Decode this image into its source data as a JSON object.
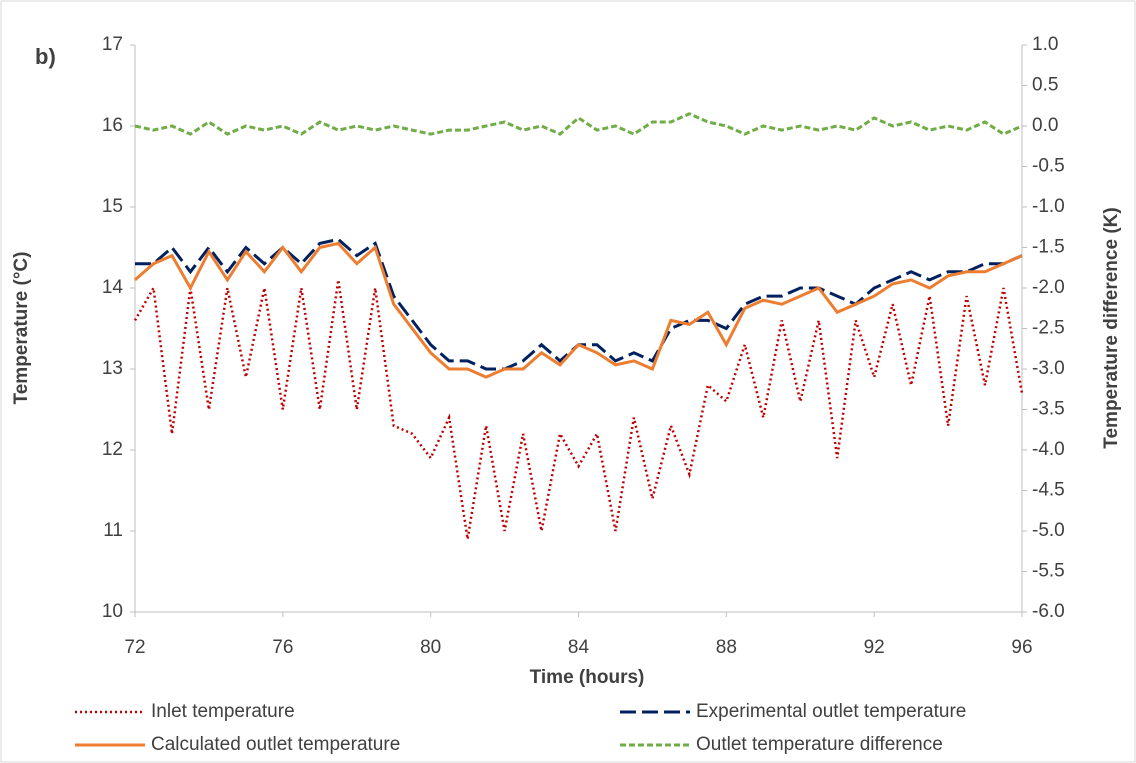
{
  "chart_data": {
    "type": "line",
    "title": "b)",
    "x_label": "Time (hours)",
    "y_label": "Temperature (°C)",
    "y2_label": "Temperature difference (K)",
    "xlim": [
      72,
      96
    ],
    "xticks": [
      72,
      76,
      80,
      84,
      88,
      92,
      96
    ],
    "ylim": [
      10,
      17
    ],
    "yticks": [
      10,
      11,
      12,
      13,
      14,
      15,
      16,
      17
    ],
    "y2lim": [
      -6,
      1
    ],
    "y2ticks": [
      {
        "value": -6,
        "label": "-6.0"
      },
      -5.5,
      {
        "value": -5,
        "label": "-5.0"
      },
      -4.5,
      {
        "value": -4,
        "label": "-4.0"
      },
      -3.5,
      {
        "value": -3,
        "label": "-3.0"
      },
      -2.5,
      {
        "value": -2,
        "label": "-2.0"
      },
      -1.5,
      {
        "value": -1,
        "label": "-1.0"
      },
      -0.5,
      {
        "value": 0,
        "label": "0.0"
      },
      0.5,
      {
        "value": 1,
        "label": "1.0"
      }
    ],
    "x": [
      72,
      72.5,
      73,
      73.5,
      74,
      74.5,
      75,
      75.5,
      76,
      76.5,
      77,
      77.5,
      78,
      78.5,
      79,
      79.5,
      80,
      80.5,
      81,
      81.5,
      82,
      82.5,
      83,
      83.5,
      84,
      84.5,
      85,
      85.5,
      86,
      86.5,
      87,
      87.5,
      88,
      88.5,
      89,
      89.5,
      90,
      90.5,
      91,
      91.5,
      92,
      92.5,
      93,
      93.5,
      94,
      94.5,
      95,
      95.5,
      96
    ],
    "series": [
      {
        "name": "Inlet temperature",
        "color": "#c00000",
        "style": "dotted",
        "values": [
          13.6,
          14.0,
          12.2,
          14.0,
          12.5,
          14.0,
          12.9,
          14.0,
          12.5,
          14.0,
          12.5,
          14.1,
          12.5,
          14.0,
          12.3,
          12.2,
          11.9,
          12.4,
          10.9,
          12.3,
          11.0,
          12.2,
          11.0,
          12.2,
          11.8,
          12.2,
          11.0,
          12.4,
          11.4,
          12.3,
          11.7,
          12.8,
          12.6,
          13.3,
          12.4,
          13.6,
          12.6,
          13.6,
          11.9,
          13.6,
          12.9,
          13.8,
          12.8,
          13.9,
          12.3,
          13.9,
          12.8,
          14.0,
          12.7
        ]
      },
      {
        "name": "Experimental outlet temperature",
        "color": "#002060",
        "style": "dashed",
        "values": [
          14.3,
          14.3,
          14.5,
          14.2,
          14.5,
          14.2,
          14.5,
          14.3,
          14.5,
          14.3,
          14.55,
          14.6,
          14.4,
          14.55,
          13.9,
          13.6,
          13.3,
          13.1,
          13.1,
          13.0,
          13.0,
          13.1,
          13.3,
          13.1,
          13.3,
          13.3,
          13.1,
          13.2,
          13.1,
          13.5,
          13.6,
          13.6,
          13.5,
          13.8,
          13.9,
          13.9,
          14.0,
          14.0,
          13.9,
          13.8,
          14.0,
          14.1,
          14.2,
          14.1,
          14.2,
          14.2,
          14.3,
          14.3,
          14.4
        ]
      },
      {
        "name": "Calculated outlet temperature",
        "color": "#ed7d31",
        "style": "solid",
        "values": [
          14.1,
          14.3,
          14.4,
          14.0,
          14.45,
          14.1,
          14.45,
          14.2,
          14.5,
          14.2,
          14.5,
          14.55,
          14.3,
          14.5,
          13.8,
          13.5,
          13.2,
          13.0,
          13.0,
          12.9,
          13.0,
          13.0,
          13.2,
          13.05,
          13.3,
          13.2,
          13.05,
          13.1,
          13.0,
          13.6,
          13.55,
          13.7,
          13.3,
          13.75,
          13.85,
          13.8,
          13.9,
          14.0,
          13.7,
          13.8,
          13.9,
          14.05,
          14.1,
          14.0,
          14.15,
          14.2,
          14.2,
          14.3,
          14.4
        ]
      },
      {
        "name": "Outlet temperature difference",
        "color": "#70ad47",
        "style": "short-dashed",
        "axis": "y2",
        "values": [
          0.0,
          -0.05,
          0.0,
          -0.1,
          0.05,
          -0.1,
          0.0,
          -0.05,
          0.0,
          -0.1,
          0.05,
          -0.05,
          0.0,
          -0.05,
          0.0,
          -0.05,
          -0.1,
          -0.05,
          -0.05,
          0.0,
          0.05,
          -0.05,
          0.0,
          -0.1,
          0.1,
          -0.05,
          0.0,
          -0.1,
          0.05,
          0.05,
          0.15,
          0.05,
          0.0,
          -0.1,
          0.0,
          -0.05,
          0.0,
          -0.05,
          0.0,
          -0.05,
          0.1,
          0.0,
          0.05,
          -0.05,
          0.0,
          -0.05,
          0.05,
          -0.1,
          0.0
        ]
      }
    ]
  }
}
